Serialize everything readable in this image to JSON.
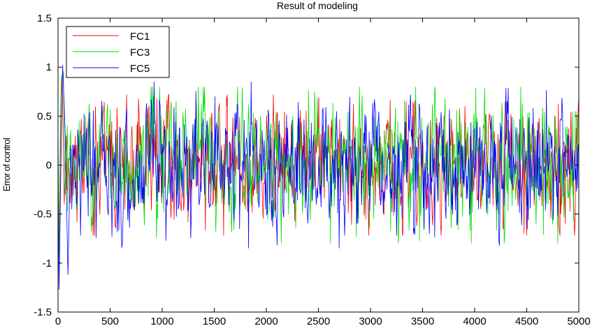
{
  "chart_data": {
    "type": "line",
    "title": "Result of modeling",
    "xlabel": "",
    "ylabel": "Error of control",
    "xlim": [
      0,
      5000
    ],
    "ylim": [
      -1.5,
      1.5
    ],
    "xticks": [
      0,
      500,
      1000,
      1500,
      2000,
      2500,
      3000,
      3500,
      4000,
      4500,
      5000
    ],
    "yticks": [
      -1.5,
      -1,
      -0.5,
      0,
      0.5,
      1,
      1.5
    ],
    "xtick_labels": [
      "0",
      "500",
      "1000",
      "1500",
      "2000",
      "2500",
      "3000",
      "3500",
      "4000",
      "4500",
      "5000"
    ],
    "ytick_labels": [
      "-1.5",
      "-1",
      "-0.5",
      "0",
      "0.5",
      "1",
      "1.5"
    ],
    "grid": false,
    "legend_position": "top-left",
    "series": [
      {
        "name": "FC1",
        "color": "#ff0000",
        "seed": 11,
        "amplitude": 0.28,
        "max_abs": 0.72,
        "transient": [
          [
            0,
            0.1
          ],
          [
            12,
            -0.9
          ],
          [
            25,
            0.6
          ],
          [
            40,
            0.9
          ],
          [
            60,
            -0.4
          ],
          [
            80,
            0.3
          ]
        ]
      },
      {
        "name": "FC3",
        "color": "#00dd00",
        "seed": 23,
        "amplitude": 0.3,
        "max_abs": 0.8,
        "transient": [
          [
            0,
            0.3
          ],
          [
            15,
            -1.0
          ],
          [
            30,
            0.9
          ],
          [
            50,
            0.95
          ],
          [
            70,
            -0.3
          ],
          [
            90,
            0.4
          ]
        ]
      },
      {
        "name": "FC5",
        "color": "#0000ff",
        "seed": 37,
        "amplitude": 0.3,
        "max_abs": 0.85,
        "transient": [
          [
            0,
            -0.2
          ],
          [
            10,
            -1.27
          ],
          [
            30,
            0.2
          ],
          [
            45,
            1.02
          ],
          [
            70,
            0.3
          ],
          [
            95,
            -1.12
          ],
          [
            120,
            0.2
          ]
        ]
      }
    ]
  }
}
